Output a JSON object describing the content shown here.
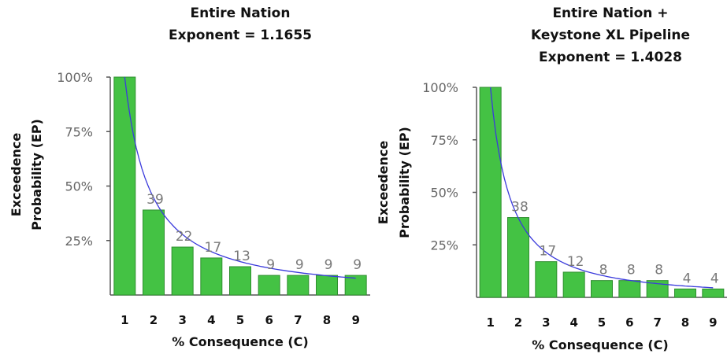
{
  "colors": {
    "bar": "#44c244",
    "bar_edge": "#2f8f2f",
    "curve": "#3a3adc",
    "axis": "#555555"
  },
  "chart_data": [
    {
      "type": "bar",
      "title_lines": [
        "Entire Nation",
        "Exponent = 1.1655"
      ],
      "xlabel": "% Consequence (C)",
      "ylabel_lines": [
        "Exceedence",
        "Probability (EP)"
      ],
      "categories": [
        "1",
        "2",
        "3",
        "4",
        "5",
        "6",
        "7",
        "8",
        "9"
      ],
      "values": [
        100,
        39,
        22,
        17,
        13,
        9,
        9,
        9,
        9
      ],
      "data_labels": [
        "",
        "39",
        "22",
        "17",
        "13",
        "9",
        "9",
        "9",
        "9"
      ],
      "yticks": [
        "25%",
        "50%",
        "75%",
        "100%"
      ],
      "ytick_values": [
        25,
        50,
        75,
        100
      ],
      "ylim": [
        0,
        100
      ],
      "fit_curve_exponent": 1.1655
    },
    {
      "type": "bar",
      "title_lines": [
        "Entire Nation +",
        "Keystone XL Pipeline",
        "Exponent = 1.4028"
      ],
      "xlabel": "% Consequence (C)",
      "ylabel_lines": [
        "Exceedence",
        "Probability (EP)"
      ],
      "categories": [
        "1",
        "2",
        "3",
        "4",
        "5",
        "6",
        "7",
        "8",
        "9"
      ],
      "values": [
        100,
        38,
        17,
        12,
        8,
        8,
        8,
        4,
        4
      ],
      "data_labels": [
        "",
        "38",
        "17",
        "12",
        "8",
        "8",
        "8",
        "4",
        "4"
      ],
      "yticks": [
        "25%",
        "50%",
        "75%",
        "100%"
      ],
      "ytick_values": [
        25,
        50,
        75,
        100
      ],
      "ylim": [
        0,
        100
      ],
      "fit_curve_exponent": 1.4028
    }
  ]
}
